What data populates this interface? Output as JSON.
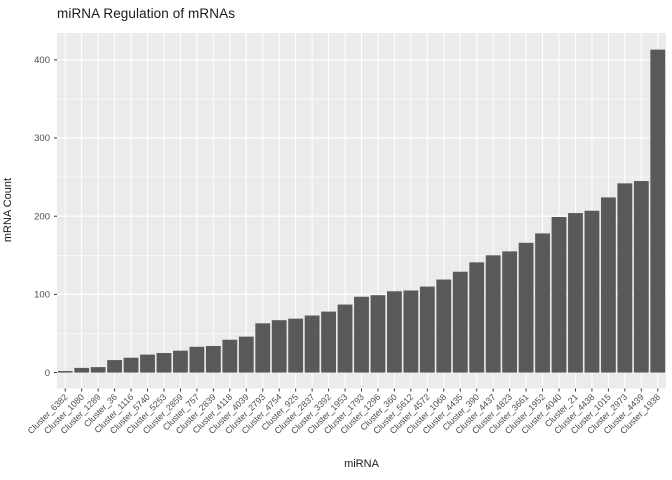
{
  "chart_data": {
    "type": "bar",
    "title": "miRNA Regulation of mRNAs",
    "xlabel": "miRNA",
    "ylabel": "mRNA Count",
    "categories": [
      "Cluster_6382",
      "Cluster_1080",
      "Cluster_1289",
      "Cluster_36",
      "Cluster_1116",
      "Cluster_5740",
      "Cluster_5253",
      "Cluster_2859",
      "Cluster_757",
      "Cluster_2839",
      "Cluster_4118",
      "Cluster_4039",
      "Cluster_2793",
      "Cluster_4754",
      "Cluster_925",
      "Cluster_2837",
      "Cluster_3392",
      "Cluster_1953",
      "Cluster_1793",
      "Cluster_1296",
      "Cluster_360",
      "Cluster_5612",
      "Cluster_4572",
      "Cluster_1068",
      "Cluster_4435",
      "Cluster_390",
      "Cluster_4437",
      "Cluster_4823",
      "Cluster_3661",
      "Cluster_1952",
      "Cluster_4040",
      "Cluster_21",
      "Cluster_4438",
      "Cluster_1015",
      "Cluster_2973",
      "Cluster_4439",
      "Cluster_1938"
    ],
    "values": [
      2,
      6,
      7,
      16,
      19,
      23,
      25,
      28,
      33,
      34,
      42,
      46,
      63,
      67,
      69,
      73,
      78,
      87,
      97,
      99,
      104,
      105,
      110,
      119,
      129,
      141,
      150,
      155,
      166,
      178,
      199,
      204,
      207,
      224,
      242,
      245,
      413
    ],
    "ylim": [
      0,
      400
    ],
    "yticks": [
      0,
      100,
      200,
      300,
      400
    ],
    "minor_gridlines": [
      50,
      150,
      250,
      350
    ],
    "grid": "on",
    "legend": "none",
    "colors": {
      "bar_fill": "#595959",
      "panel_bg": "#EBEBEB",
      "grid": "#FFFFFF",
      "tick_text": "#4D4D4D",
      "title_text": "#1A1A1A",
      "tick_mark": "#333333",
      "plot_bg": "#FFFFFF"
    }
  }
}
